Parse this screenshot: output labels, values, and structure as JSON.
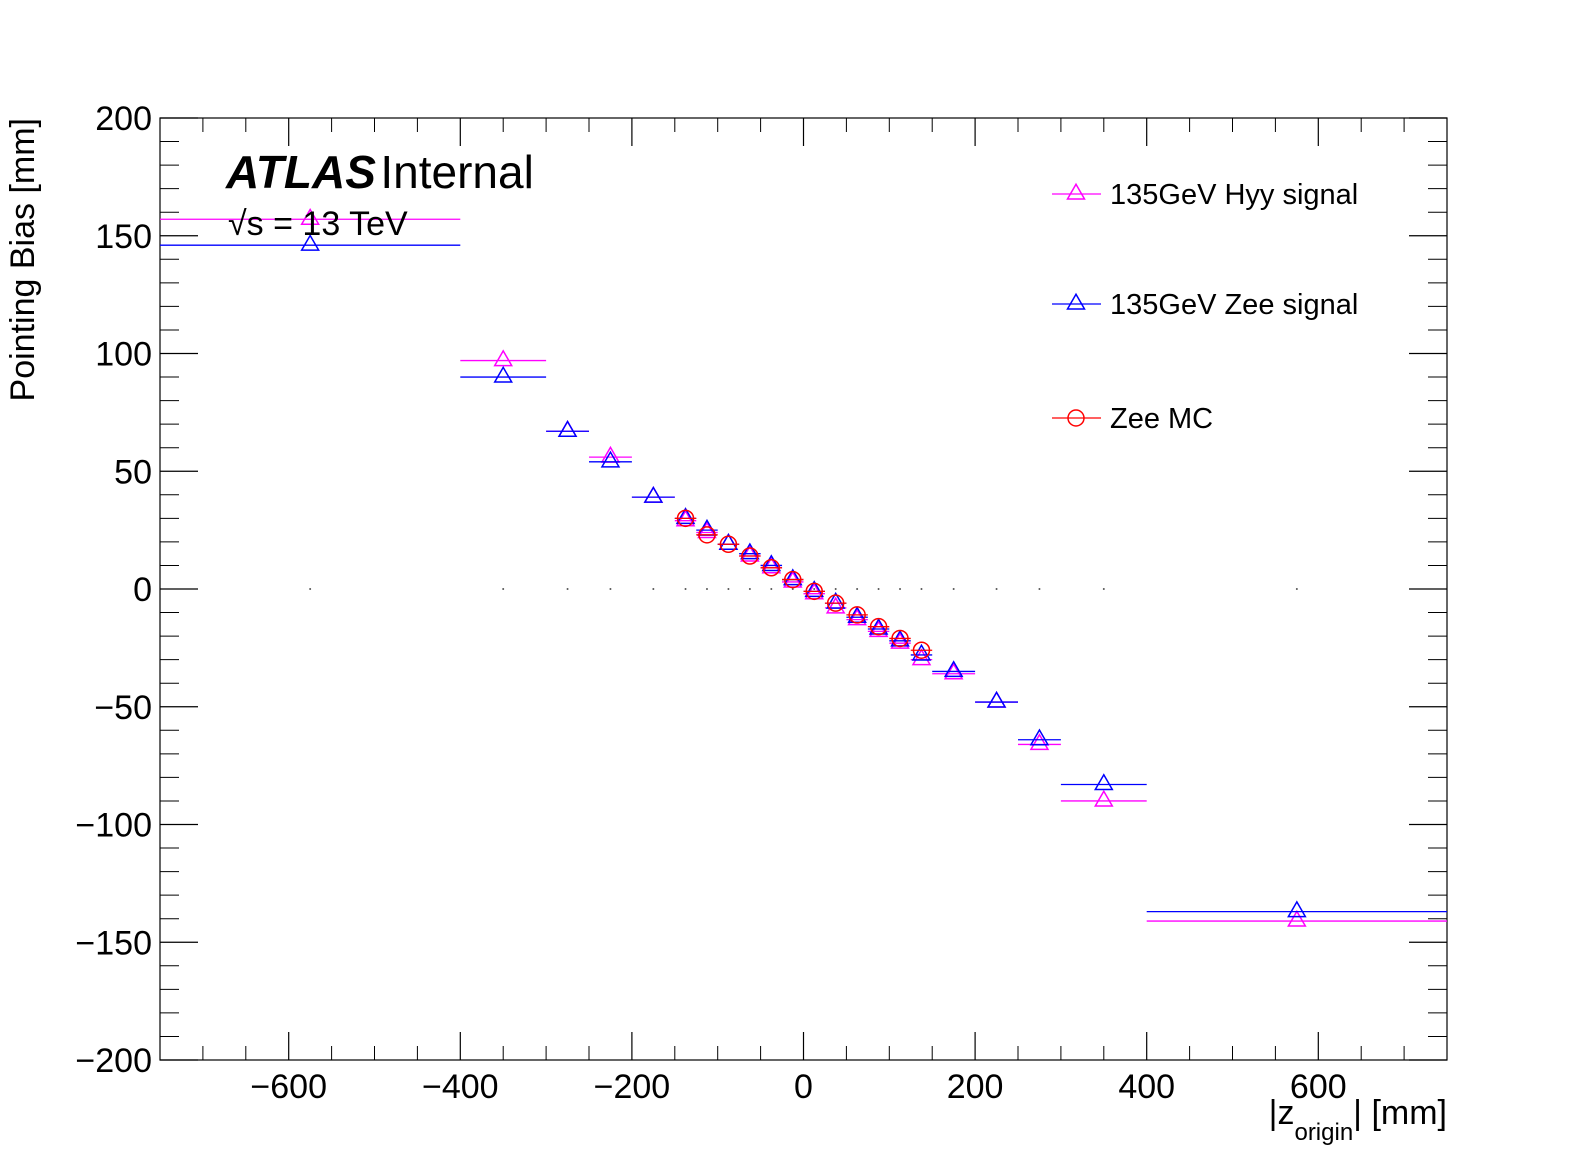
{
  "chart_data": {
    "type": "scatter",
    "xlabel": "|z_origin| [mm]",
    "xlabel_parts": {
      "prefix": "|z",
      "subscript": "origin",
      "suffix": "| [mm]"
    },
    "ylabel": "Pointing Bias [mm]",
    "xlim": [
      -750,
      750
    ],
    "ylim": [
      -200,
      200
    ],
    "x_ticks": [
      -600,
      -400,
      -200,
      0,
      200,
      400,
      600
    ],
    "x_tick_labels": [
      "−600",
      "−400",
      "−200",
      "0",
      "200",
      "400",
      "600"
    ],
    "y_ticks": [
      -200,
      -150,
      -100,
      -50,
      0,
      50,
      100,
      150,
      200
    ],
    "y_tick_labels": [
      "−200",
      "−150",
      "−100",
      "−50",
      "0",
      "50",
      "100",
      "150",
      "200"
    ],
    "annotations": {
      "atlas": "ATLAS",
      "internal": "Internal",
      "energy_sqrt": "√s",
      "energy_rest": " = 13 TeV"
    },
    "legend_position": "top-right",
    "series": [
      {
        "name": "135GeV Hyy signal",
        "color": "#ff00ff",
        "marker": "triangle",
        "points": [
          {
            "x": -575,
            "xerr": 175,
            "y": 157
          },
          {
            "x": -350,
            "xerr": 50,
            "y": 97
          },
          {
            "x": -275,
            "xerr": 25,
            "y": 67
          },
          {
            "x": -225,
            "xerr": 25,
            "y": 56
          },
          {
            "x": -175,
            "xerr": 25,
            "y": 39
          },
          {
            "x": -137.5,
            "xerr": 12.5,
            "y": 29
          },
          {
            "x": -112.5,
            "xerr": 12.5,
            "y": 24
          },
          {
            "x": -87.5,
            "xerr": 12.5,
            "y": 19
          },
          {
            "x": -62.5,
            "xerr": 12.5,
            "y": 14
          },
          {
            "x": -37.5,
            "xerr": 12.5,
            "y": 9
          },
          {
            "x": -12.5,
            "xerr": 12.5,
            "y": 3
          },
          {
            "x": 12.5,
            "xerr": 12.5,
            "y": -2
          },
          {
            "x": 37.5,
            "xerr": 12.5,
            "y": -8
          },
          {
            "x": 62.5,
            "xerr": 12.5,
            "y": -13
          },
          {
            "x": 87.5,
            "xerr": 12.5,
            "y": -18
          },
          {
            "x": 112.5,
            "xerr": 12.5,
            "y": -23
          },
          {
            "x": 137.5,
            "xerr": 12.5,
            "y": -30
          },
          {
            "x": 175,
            "xerr": 25,
            "y": -36
          },
          {
            "x": 225,
            "xerr": 25,
            "y": -48
          },
          {
            "x": 275,
            "xerr": 25,
            "y": -66
          },
          {
            "x": 350,
            "xerr": 50,
            "y": -90
          },
          {
            "x": 575,
            "xerr": 175,
            "y": -141
          }
        ]
      },
      {
        "name": "135GeV Zee signal",
        "color": "#0000ff",
        "marker": "triangle",
        "points": [
          {
            "x": -575,
            "xerr": 175,
            "y": 146
          },
          {
            "x": -350,
            "xerr": 50,
            "y": 90
          },
          {
            "x": -275,
            "xerr": 25,
            "y": 67
          },
          {
            "x": -225,
            "xerr": 25,
            "y": 54
          },
          {
            "x": -175,
            "xerr": 25,
            "y": 39
          },
          {
            "x": -137.5,
            "xerr": 12.5,
            "y": 30
          },
          {
            "x": -112.5,
            "xerr": 12.5,
            "y": 25
          },
          {
            "x": -87.5,
            "xerr": 12.5,
            "y": 19
          },
          {
            "x": -62.5,
            "xerr": 12.5,
            "y": 15
          },
          {
            "x": -37.5,
            "xerr": 12.5,
            "y": 10
          },
          {
            "x": -12.5,
            "xerr": 12.5,
            "y": 4
          },
          {
            "x": 12.5,
            "xerr": 12.5,
            "y": -1
          },
          {
            "x": 37.5,
            "xerr": 12.5,
            "y": -6
          },
          {
            "x": 62.5,
            "xerr": 12.5,
            "y": -12
          },
          {
            "x": 87.5,
            "xerr": 12.5,
            "y": -17
          },
          {
            "x": 112.5,
            "xerr": 12.5,
            "y": -22
          },
          {
            "x": 137.5,
            "xerr": 12.5,
            "y": -28
          },
          {
            "x": 175,
            "xerr": 25,
            "y": -35
          },
          {
            "x": 225,
            "xerr": 25,
            "y": -48
          },
          {
            "x": 275,
            "xerr": 25,
            "y": -64
          },
          {
            "x": 350,
            "xerr": 50,
            "y": -83
          },
          {
            "x": 575,
            "xerr": 175,
            "y": -137
          }
        ]
      },
      {
        "name": "Zee MC",
        "color": "#ff0000",
        "marker": "circle",
        "points": [
          {
            "x": -137.5,
            "xerr": 12.5,
            "y": 30
          },
          {
            "x": -112.5,
            "xerr": 12.5,
            "y": 23
          },
          {
            "x": -87.5,
            "xerr": 12.5,
            "y": 19
          },
          {
            "x": -62.5,
            "xerr": 12.5,
            "y": 14
          },
          {
            "x": -37.5,
            "xerr": 12.5,
            "y": 9
          },
          {
            "x": -12.5,
            "xerr": 12.5,
            "y": 4
          },
          {
            "x": 12.5,
            "xerr": 12.5,
            "y": -1
          },
          {
            "x": 37.5,
            "xerr": 12.5,
            "y": -6
          },
          {
            "x": 62.5,
            "xerr": 12.5,
            "y": -11
          },
          {
            "x": 87.5,
            "xerr": 12.5,
            "y": -16
          },
          {
            "x": 112.5,
            "xerr": 12.5,
            "y": -21
          },
          {
            "x": 137.5,
            "xerr": 12.5,
            "y": -26
          }
        ]
      }
    ],
    "zero_reference_dots_x": [
      -575,
      -350,
      -275,
      -225,
      -175,
      -137.5,
      -112.5,
      -87.5,
      -62.5,
      -37.5,
      -12.5,
      12.5,
      37.5,
      62.5,
      87.5,
      112.5,
      137.5,
      175,
      225,
      275,
      350,
      575
    ]
  }
}
